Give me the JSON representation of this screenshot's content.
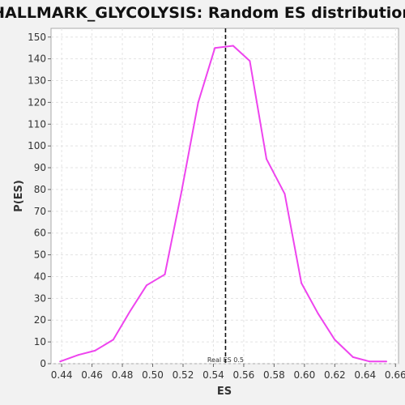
{
  "colors": {
    "background": "#f2f2f2",
    "plot_background": "#ffffff",
    "line": "#ee44ee",
    "grid": "#e3e3e3",
    "marker": "#111111"
  },
  "chart_data": {
    "type": "line",
    "title": "HALLMARK_GLYCOLYSIS: Random ES distribution",
    "xlabel": "ES",
    "ylabel": "P(ES)",
    "xlim": [
      0.433,
      0.662
    ],
    "ylim": [
      0,
      154
    ],
    "xticks": [
      "0.44",
      "0.46",
      "0.48",
      "0.50",
      "0.52",
      "0.54",
      "0.56",
      "0.58",
      "0.60",
      "0.62",
      "0.64",
      "0.66"
    ],
    "yticks": [
      "0",
      "10",
      "20",
      "30",
      "40",
      "50",
      "60",
      "70",
      "80",
      "90",
      "100",
      "110",
      "120",
      "130",
      "140",
      "150"
    ],
    "grid": true,
    "series": [
      {
        "x": [
          0.439,
          0.451,
          0.462,
          0.474,
          0.485,
          0.496,
          0.508,
          0.519,
          0.53,
          0.541,
          0.553,
          0.564,
          0.575,
          0.587,
          0.598,
          0.609,
          0.62,
          0.632,
          0.643,
          0.654
        ],
        "values": [
          1,
          4,
          6,
          11,
          24,
          36,
          41,
          79,
          120,
          145,
          146,
          139,
          94,
          78,
          37,
          23,
          11,
          3,
          1,
          1
        ]
      }
    ],
    "annotations": [
      {
        "x": 0.548,
        "label": "Real ES 0.5"
      }
    ]
  }
}
